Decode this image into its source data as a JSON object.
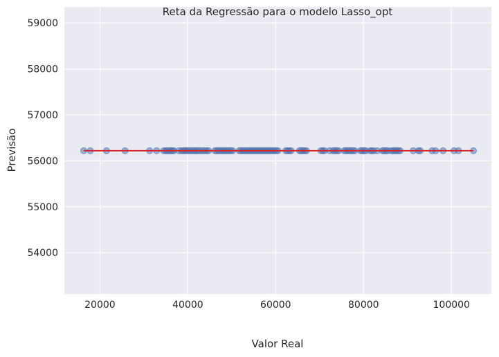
{
  "chart_data": {
    "type": "scatter",
    "title": "Reta da Regressão para o modelo Lasso_opt",
    "xlabel": "Valor Real",
    "ylabel": "Previsão",
    "xlim": [
      11900,
      109100
    ],
    "ylim": [
      53100,
      59350
    ],
    "xticks": [
      20000,
      40000,
      60000,
      80000,
      100000
    ],
    "yticks": [
      54000,
      55000,
      56000,
      57000,
      58000,
      59000
    ],
    "grid": true,
    "background": "#eaeaf2",
    "grid_color": "#ffffff",
    "point_color": "#4c72b0",
    "line_color": "#d62728",
    "prediction": 56220,
    "regression_line": {
      "x": [
        16300,
        105000
      ],
      "y": [
        56220,
        56220
      ]
    },
    "points": {
      "y": 56220,
      "x": [
        16300,
        17800,
        21500,
        25700,
        31300,
        32900,
        34500,
        35000,
        35300,
        35800,
        36200,
        36500,
        36800,
        38000,
        38600,
        39000,
        39400,
        39800,
        40200,
        40700,
        41100,
        41500,
        41900,
        42300,
        42800,
        43300,
        43800,
        44300,
        44700,
        46200,
        46600,
        47000,
        47400,
        47800,
        48200,
        48600,
        49000,
        49400,
        49800,
        50200,
        51700,
        52100,
        52500,
        52900,
        53300,
        53700,
        54100,
        54500,
        54900,
        55300,
        55700,
        56100,
        56500,
        56900,
        57300,
        57700,
        58100,
        58500,
        58900,
        59300,
        59700,
        60100,
        60500,
        62300,
        62700,
        63100,
        63500,
        65400,
        65800,
        66200,
        66600,
        67000,
        70300,
        70700,
        71100,
        72300,
        73100,
        73500,
        73900,
        74300,
        75600,
        76000,
        76400,
        76800,
        77200,
        77600,
        78000,
        79300,
        79700,
        80100,
        80500,
        81500,
        81900,
        82300,
        83100,
        84300,
        84700,
        85100,
        85500,
        86300,
        86700,
        87100,
        87500,
        87900,
        88300,
        91300,
        92500,
        92900,
        95600,
        96400,
        98100,
        100600,
        101600,
        105000
      ]
    }
  }
}
